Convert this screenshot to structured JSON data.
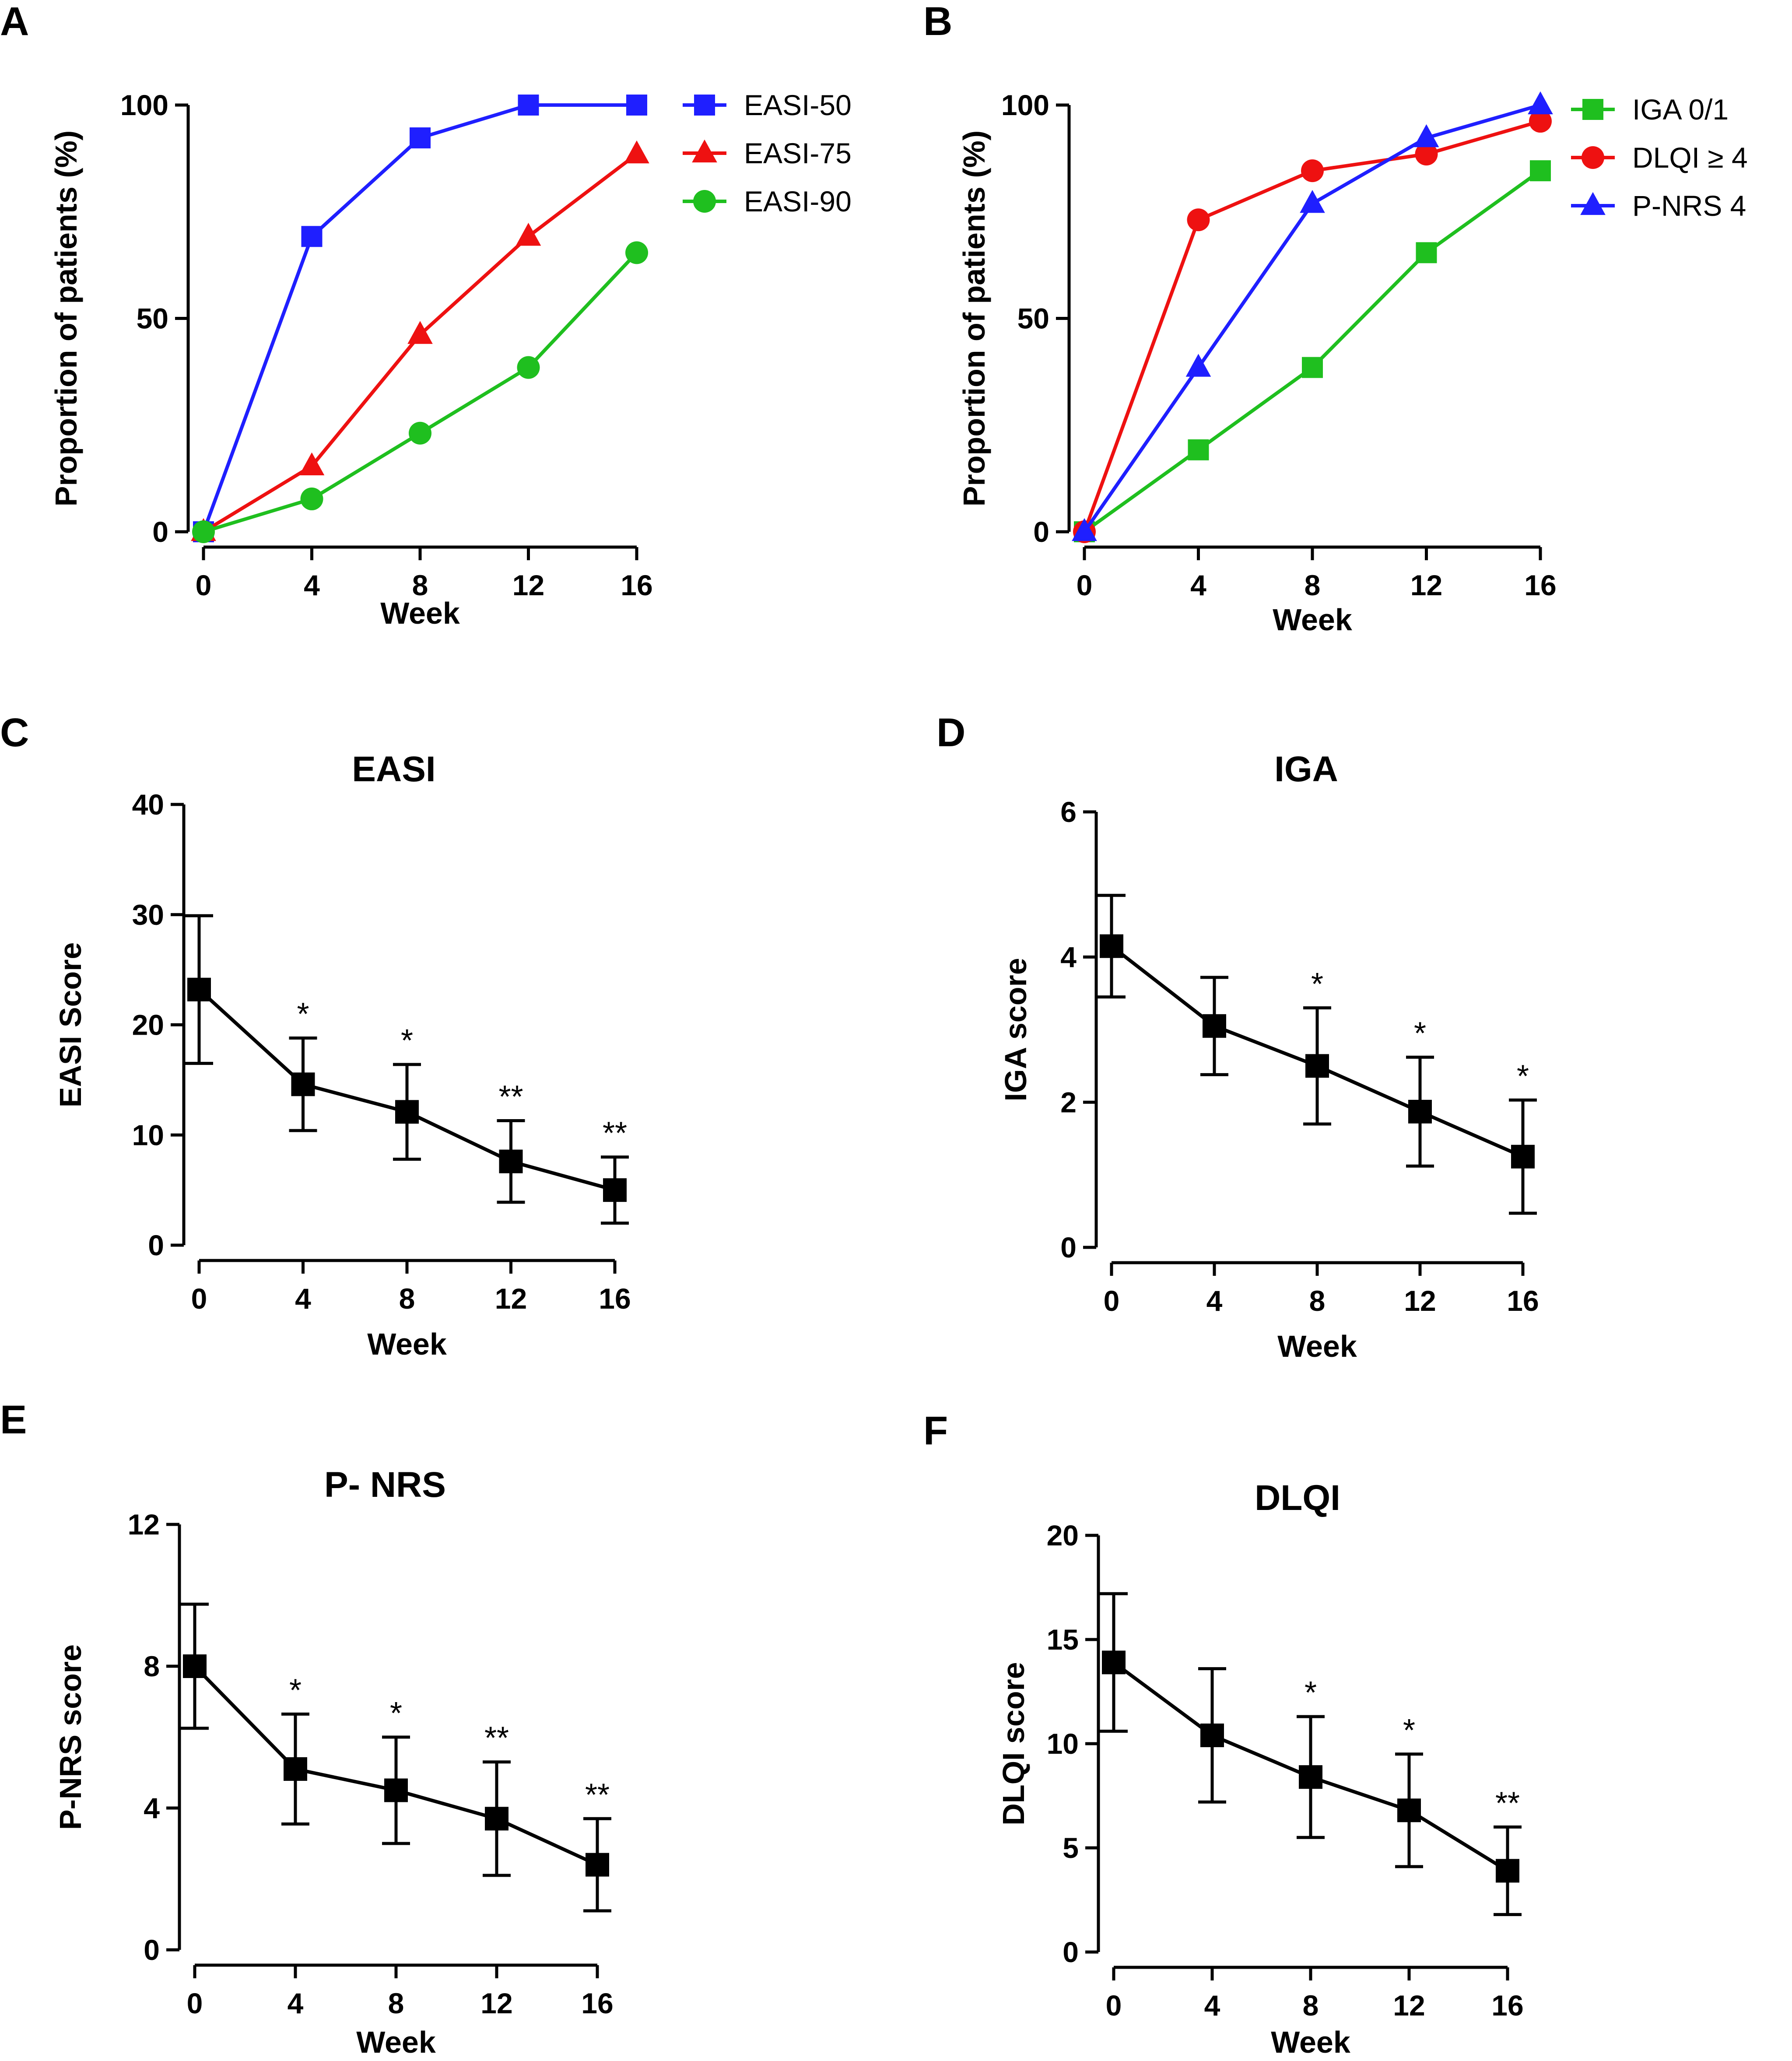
{
  "chart_data": [
    {
      "panel": "A",
      "type": "line",
      "title": "",
      "xlabel": "Week",
      "ylabel": "Proportion of patients (%)",
      "x": [
        0,
        4,
        8,
        12,
        16
      ],
      "xticks": [
        "0",
        "4",
        "8",
        "12",
        "16"
      ],
      "ylim": [
        0,
        100
      ],
      "yticks": [
        "0",
        "50",
        "100"
      ],
      "legend_position": "right",
      "series": [
        {
          "name": "EASI-50",
          "values": [
            0,
            69.2,
            92.3,
            100,
            100
          ],
          "color": "#1f1fff",
          "marker": "square"
        },
        {
          "name": "EASI-75",
          "values": [
            0,
            15.4,
            46.2,
            69.2,
            88.5
          ],
          "color": "#ee1111",
          "marker": "triangle"
        },
        {
          "name": "EASI-90",
          "values": [
            0,
            7.7,
            23.1,
            38.5,
            65.4
          ],
          "color": "#1fbf1f",
          "marker": "circle"
        }
      ]
    },
    {
      "panel": "B",
      "type": "line",
      "title": "",
      "xlabel": "Week",
      "ylabel": "Proportion of patients (%)",
      "x": [
        0,
        4,
        8,
        12,
        16
      ],
      "xticks": [
        "0",
        "4",
        "8",
        "12",
        "16"
      ],
      "ylim": [
        0,
        100
      ],
      "yticks": [
        "0",
        "50",
        "100"
      ],
      "legend_position": "right",
      "series": [
        {
          "name": "IGA 0/1",
          "values": [
            0,
            19.2,
            38.5,
            65.4,
            84.6
          ],
          "color": "#1fbf1f",
          "marker": "square"
        },
        {
          "name": "DLQI ≥ 4",
          "values": [
            0,
            73.1,
            84.6,
            88.5,
            96.2
          ],
          "color": "#ee1111",
          "marker": "circle"
        },
        {
          "name": "P-NRS 4",
          "values": [
            0,
            38.5,
            76.9,
            92.3,
            100
          ],
          "color": "#1f1fff",
          "marker": "triangle"
        }
      ]
    },
    {
      "panel": "C",
      "type": "line",
      "title": "EASI",
      "xlabel": "Week",
      "ylabel": "EASI Score",
      "x": [
        0,
        4,
        8,
        12,
        16
      ],
      "xticks": [
        "0",
        "4",
        "8",
        "12",
        "16"
      ],
      "ylim": [
        0,
        40
      ],
      "yticks": [
        "0",
        "10",
        "20",
        "30",
        "40"
      ],
      "series": [
        {
          "name": "EASI",
          "values": [
            23.2,
            14.6,
            12.1,
            7.6,
            5.0
          ],
          "error": [
            6.7,
            4.2,
            4.3,
            3.7,
            3.0
          ],
          "color": "#000000",
          "marker": "square"
        }
      ],
      "significance": [
        "",
        "*",
        "*",
        "**",
        "**"
      ]
    },
    {
      "panel": "D",
      "type": "line",
      "title": "IGA",
      "xlabel": "Week",
      "ylabel": "IGA score",
      "x": [
        0,
        4,
        8,
        12,
        16
      ],
      "xticks": [
        "0",
        "4",
        "8",
        "12",
        "16"
      ],
      "ylim": [
        0,
        6
      ],
      "yticks": [
        "0",
        "2",
        "4",
        "6"
      ],
      "series": [
        {
          "name": "IGA",
          "values": [
            4.15,
            3.05,
            2.5,
            1.87,
            1.25
          ],
          "error": [
            0.7,
            0.67,
            0.8,
            0.75,
            0.78
          ],
          "color": "#000000",
          "marker": "square"
        }
      ],
      "significance": [
        "",
        "",
        "*",
        "*",
        "*"
      ]
    },
    {
      "panel": "E",
      "type": "line",
      "title": "P- NRS",
      "xlabel": "Week",
      "ylabel": "P-NRS score",
      "x": [
        0,
        4,
        8,
        12,
        16
      ],
      "xticks": [
        "0",
        "4",
        "8",
        "12",
        "16"
      ],
      "ylim": [
        0,
        12
      ],
      "yticks": [
        "0",
        "4",
        "8",
        "12"
      ],
      "series": [
        {
          "name": "P-NRS",
          "values": [
            8.0,
            5.1,
            4.5,
            3.7,
            2.4
          ],
          "error": [
            1.75,
            1.55,
            1.5,
            1.6,
            1.3
          ],
          "color": "#000000",
          "marker": "square"
        }
      ],
      "significance": [
        "",
        "*",
        "*",
        "**",
        "**"
      ]
    },
    {
      "panel": "F",
      "type": "line",
      "title": "DLQI",
      "xlabel": "Week",
      "ylabel": "DLQI score",
      "x": [
        0,
        4,
        8,
        12,
        16
      ],
      "xticks": [
        "0",
        "4",
        "8",
        "12",
        "16"
      ],
      "ylim": [
        0,
        20
      ],
      "yticks": [
        "0",
        "5",
        "10",
        "15",
        "20"
      ],
      "series": [
        {
          "name": "DLQI",
          "values": [
            13.9,
            10.4,
            8.4,
            6.8,
            3.9
          ],
          "error": [
            3.3,
            3.2,
            2.9,
            2.7,
            2.1
          ],
          "color": "#000000",
          "marker": "square"
        }
      ],
      "significance": [
        "",
        "",
        "*",
        "*",
        "**"
      ]
    }
  ]
}
